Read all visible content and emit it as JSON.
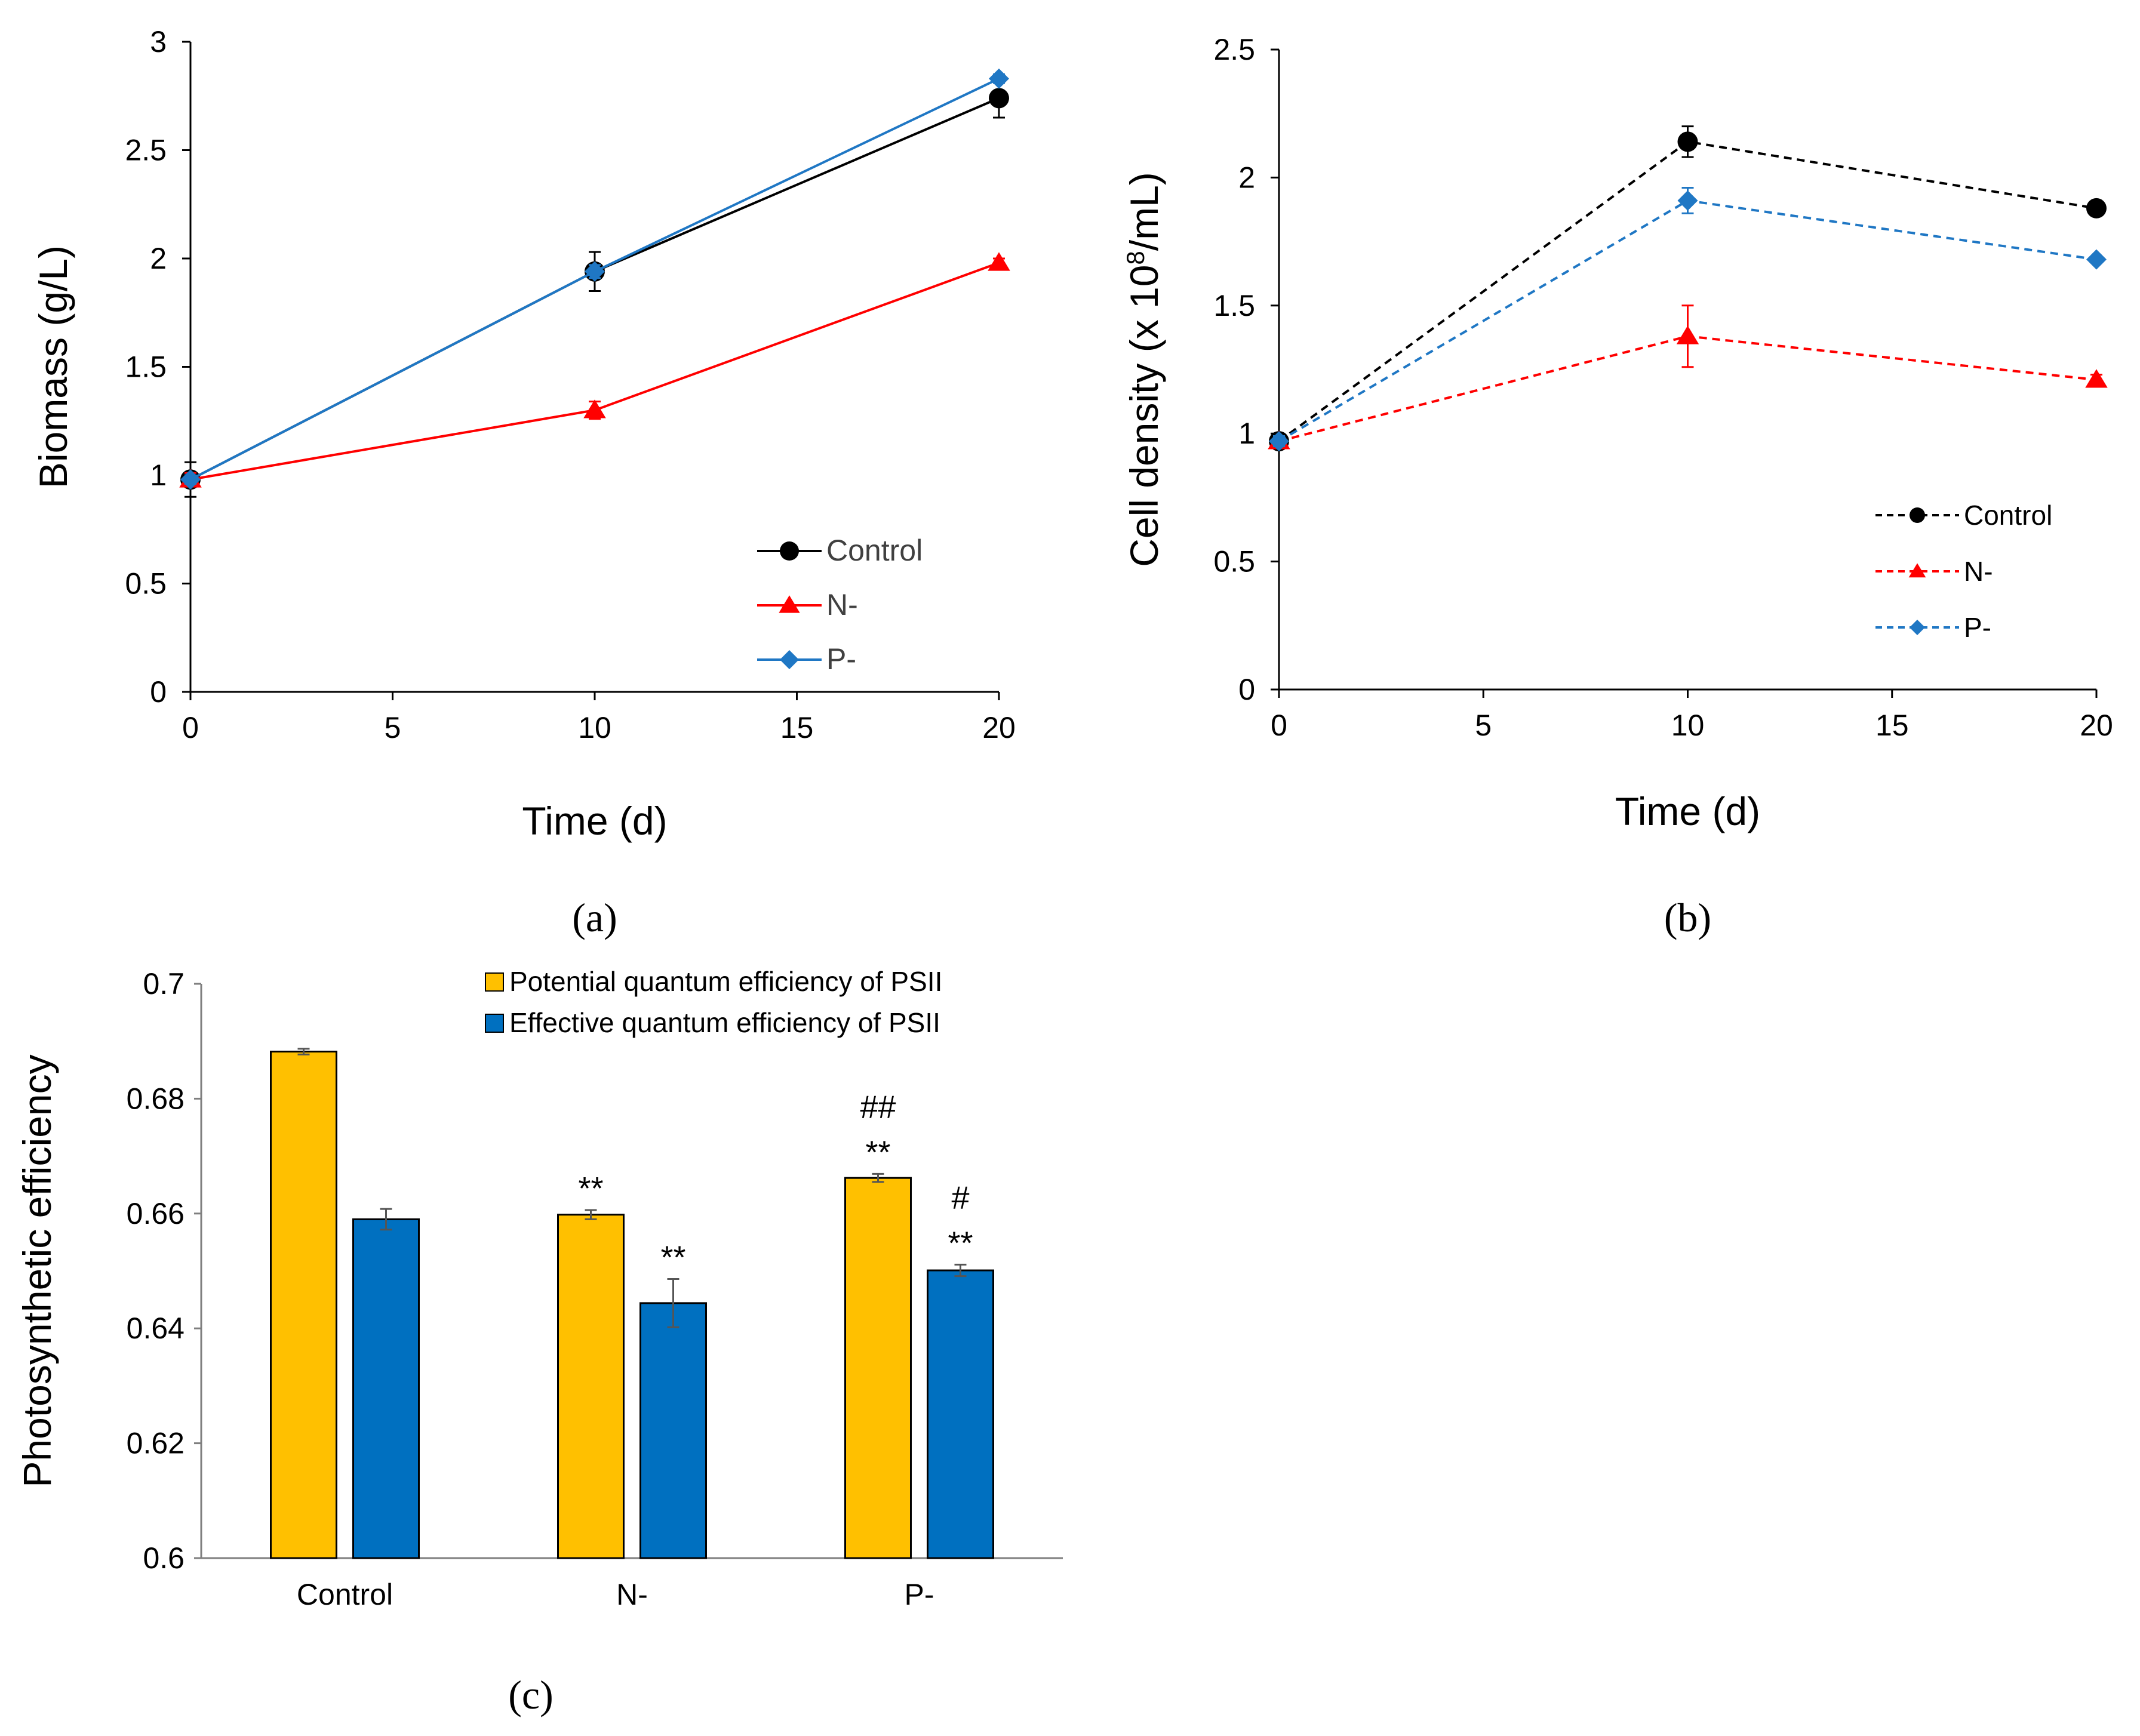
{
  "colors": {
    "control": "#000000",
    "n_minus": "#ff0000",
    "p_minus": "#1f77c4",
    "bar_potential": "#ffc000",
    "bar_effective": "#0070c0",
    "error_bar": "#555555"
  },
  "chart_data": [
    {
      "id": "a",
      "panel_label": "(a)",
      "type": "line",
      "xlabel": "Time (d)",
      "ylabel": "Biomass (g/L)",
      "xlim": [
        0,
        20
      ],
      "ylim": [
        0,
        3
      ],
      "x_ticks": [
        "0",
        "5",
        "10",
        "15",
        "20"
      ],
      "y_ticks": [
        "0",
        "0.5",
        "1",
        "1.5",
        "2",
        "2.5",
        "3"
      ],
      "grid": false,
      "legend_position": "bottom-right",
      "x": [
        0,
        10,
        20
      ],
      "series": [
        {
          "name": "Control",
          "marker": "circle",
          "dashed": false,
          "values": [
            0.98,
            1.94,
            2.74
          ],
          "errors": [
            0.08,
            0.09,
            0.09
          ]
        },
        {
          "name": "N-",
          "marker": "triangle",
          "dashed": false,
          "values": [
            0.98,
            1.3,
            1.98
          ],
          "errors": [
            0.03,
            0.04,
            0.02
          ]
        },
        {
          "name": "P-",
          "marker": "diamond",
          "dashed": false,
          "values": [
            0.98,
            1.94,
            2.83
          ],
          "errors": [
            0.02,
            0.03,
            0.02
          ]
        }
      ]
    },
    {
      "id": "b",
      "panel_label": "(b)",
      "type": "line",
      "xlabel": "Time (d)",
      "ylabel_main": "Cell density (x 10",
      "ylabel_sup": "8",
      "ylabel_end": "/mL)",
      "xlim": [
        0,
        20
      ],
      "ylim": [
        0,
        2.5
      ],
      "x_ticks": [
        "0",
        "5",
        "10",
        "15",
        "20"
      ],
      "y_ticks": [
        "0",
        "0.5",
        "1",
        "1.5",
        "2",
        "2.5"
      ],
      "grid": false,
      "legend_position": "right",
      "x": [
        0,
        10,
        20
      ],
      "series": [
        {
          "name": "Control",
          "marker": "circle",
          "dashed": true,
          "values": [
            0.97,
            2.14,
            1.88
          ],
          "errors": [
            0.02,
            0.06,
            0.02
          ]
        },
        {
          "name": "N-",
          "marker": "triangle",
          "dashed": true,
          "values": [
            0.97,
            1.38,
            1.21
          ],
          "errors": [
            0.02,
            0.12,
            0.02
          ]
        },
        {
          "name": "P-",
          "marker": "diamond",
          "dashed": true,
          "values": [
            0.97,
            1.91,
            1.68
          ],
          "errors": [
            0.02,
            0.05,
            0.01
          ]
        }
      ]
    },
    {
      "id": "c",
      "panel_label": "(c)",
      "type": "bar",
      "ylabel": "Photosynthetic  efficiency",
      "ylim": [
        0.6,
        0.7
      ],
      "y_ticks": [
        "0.6",
        "0.62",
        "0.64",
        "0.66",
        "0.68",
        "0.7"
      ],
      "categories": [
        "Control",
        "N-",
        "P-"
      ],
      "legend_position": "top",
      "series": [
        {
          "name": "Potential quantum efficiency of PSII",
          "values": [
            0.6882,
            0.6598,
            0.6662
          ],
          "errors": [
            0.0005,
            0.0008,
            0.0007
          ]
        },
        {
          "name": "Effective quantum efficiency of PSII",
          "values": [
            0.659,
            0.6444,
            0.6501
          ],
          "errors": [
            0.0018,
            0.0042,
            0.001
          ]
        }
      ],
      "annotations": [
        {
          "category": 1,
          "series": 0,
          "lines": [
            "**"
          ]
        },
        {
          "category": 1,
          "series": 1,
          "lines": [
            "**"
          ]
        },
        {
          "category": 2,
          "series": 0,
          "lines": [
            "##",
            "**"
          ]
        },
        {
          "category": 2,
          "series": 1,
          "lines": [
            "#",
            "**"
          ]
        }
      ]
    }
  ]
}
